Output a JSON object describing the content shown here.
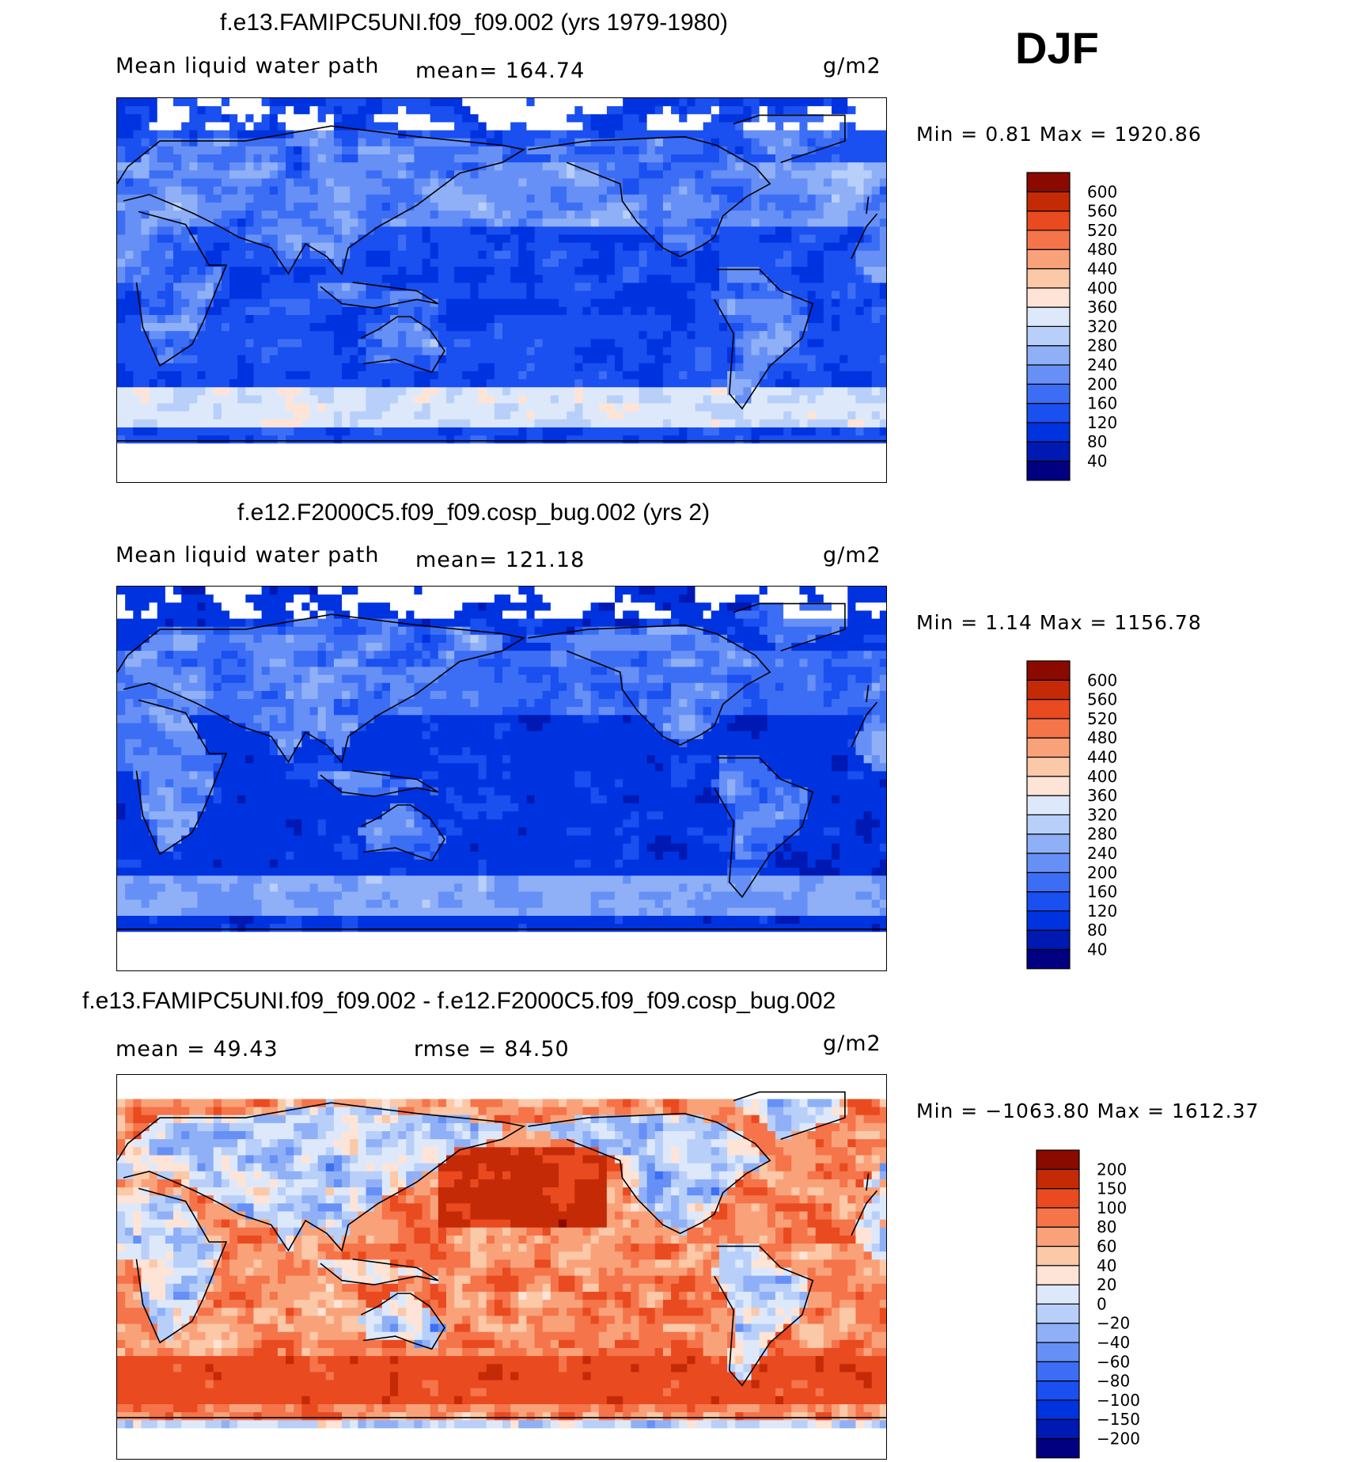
{
  "season": "DJF",
  "panels": [
    {
      "title": "f.e13.FAMIPC5UNI.f09_f09.002 (yrs 1979-1980)",
      "left_label": "Mean liquid water path",
      "center_label": "mean= 164.74",
      "units": "g/m2",
      "minmax": "Min =    0.81  Max  =  1920.86",
      "style": "abs1"
    },
    {
      "title": "f.e12.F2000C5.f09_f09.cosp_bug.002 (yrs 2)",
      "left_label": "Mean liquid water path",
      "center_label": "mean= 121.18",
      "units": "g/m2",
      "minmax": "Min =    1.14  Max  =  1156.78",
      "style": "abs2"
    },
    {
      "title": "f.e13.FAMIPC5UNI.f09_f09.002 - f.e12.F2000C5.f09_f09.cosp_bug.002",
      "left_label": "mean  =   49.43",
      "center_label": "rmse  =   84.50",
      "units": "g/m2",
      "minmax": "Min  =  −1063.80  Max  =  1612.37",
      "style": "diff"
    }
  ],
  "chart_data": [
    {
      "type": "heatmap",
      "title": "f.e13.FAMIPC5UNI.f09_f09.002 (yrs 1979-1980)",
      "variable": "Mean liquid water path",
      "units": "g/m2",
      "mean": 164.74,
      "min": 0.81,
      "max": 1920.86,
      "colorbar_levels": [
        40,
        80,
        120,
        160,
        200,
        240,
        280,
        320,
        360,
        400,
        440,
        480,
        520,
        560,
        600
      ],
      "colorbar_colors": [
        "#000080",
        "#0019b3",
        "#0033e0",
        "#1a4ff0",
        "#3c6ef5",
        "#6690f5",
        "#8fb0f7",
        "#b8cff9",
        "#dde9fb",
        "#fde4d6",
        "#fbc8a8",
        "#f9a27a",
        "#f5744a",
        "#e94a20",
        "#c42a06",
        "#8b0a00"
      ]
    },
    {
      "type": "heatmap",
      "title": "f.e12.F2000C5.f09_f09.cosp_bug.002 (yrs 2)",
      "variable": "Mean liquid water path",
      "units": "g/m2",
      "mean": 121.18,
      "min": 1.14,
      "max": 1156.78,
      "colorbar_levels": [
        40,
        80,
        120,
        160,
        200,
        240,
        280,
        320,
        360,
        400,
        440,
        480,
        520,
        560,
        600
      ],
      "colorbar_colors": [
        "#000080",
        "#0019b3",
        "#0033e0",
        "#1a4ff0",
        "#3c6ef5",
        "#6690f5",
        "#8fb0f7",
        "#b8cff9",
        "#dde9fb",
        "#fde4d6",
        "#fbc8a8",
        "#f9a27a",
        "#f5744a",
        "#e94a20",
        "#c42a06",
        "#8b0a00"
      ]
    },
    {
      "type": "heatmap",
      "title": "f.e13.FAMIPC5UNI.f09_f09.002 - f.e12.F2000C5.f09_f09.cosp_bug.002",
      "units": "g/m2",
      "mean": 49.43,
      "rmse": 84.5,
      "min": -1063.8,
      "max": 1612.37,
      "colorbar_levels": [
        -200,
        -150,
        -100,
        -80,
        -60,
        -40,
        -20,
        0,
        20,
        40,
        60,
        80,
        100,
        150,
        200
      ],
      "colorbar_labels": [
        "−200",
        "−150",
        "−100",
        "−80",
        "−60",
        "−40",
        "−20",
        "0",
        "20",
        "40",
        "60",
        "80",
        "100",
        "150",
        "200"
      ],
      "colorbar_colors": [
        "#000080",
        "#0019b3",
        "#0033e0",
        "#1a4ff0",
        "#3c6ef5",
        "#6690f5",
        "#8fb0f7",
        "#b8cff9",
        "#dde9fb",
        "#fde4d6",
        "#fbc8a8",
        "#f9a27a",
        "#f5744a",
        "#e94a20",
        "#c42a06",
        "#8b0a00"
      ]
    }
  ]
}
